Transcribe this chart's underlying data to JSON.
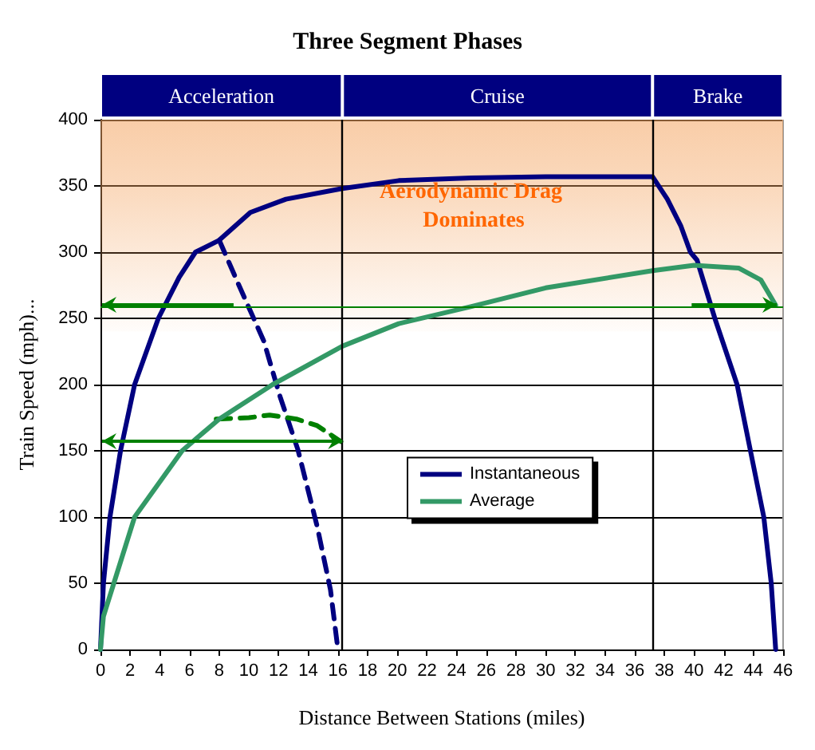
{
  "chart_data": {
    "type": "line",
    "title": "Three Segment Phases",
    "xlabel": "Distance Between Stations (miles)",
    "ylabel": "Train Speed (mph)...",
    "xlim": [
      0,
      46
    ],
    "xticks": [
      0,
      2,
      4,
      6,
      8,
      10,
      12,
      14,
      16,
      18,
      20,
      22,
      24,
      26,
      28,
      30,
      32,
      34,
      36,
      38,
      40,
      42,
      44,
      46
    ],
    "ylim": [
      0,
      400
    ],
    "yticks": [
      0,
      50,
      100,
      150,
      200,
      250,
      300,
      350,
      400
    ],
    "grid": "y",
    "legend": "center",
    "line_style": "solid",
    "series": [
      {
        "name": "Instantaneous",
        "color": "#000080",
        "x": [
          0,
          0.2,
          0.64,
          1.35,
          2.3,
          3.9,
          5.3,
          6.4,
          8,
          10.1,
          12.5,
          16.3,
          20.1,
          25,
          30,
          37.2,
          38.2,
          39.1,
          39.75,
          40.2,
          41.4,
          42.9,
          43.8,
          44.7,
          45.2,
          45.5
        ],
        "values": [
          0,
          50,
          100,
          150,
          200,
          250,
          281,
          300,
          309,
          330,
          340,
          348,
          354,
          356,
          357,
          357,
          340,
          320,
          300,
          294,
          250,
          200,
          150,
          100,
          50,
          0
        ]
      },
      {
        "name": "Average",
        "color": "#339966",
        "x": [
          0,
          0.2,
          0.9,
          2.3,
          5.5,
          8,
          11.6,
          16.3,
          20.1,
          25,
          30,
          37.2,
          40,
          43,
          44.5,
          45.5
        ],
        "values": [
          0,
          25,
          50,
          100,
          150,
          174,
          200,
          229,
          246,
          259,
          273,
          286,
          290,
          288,
          279,
          260
        ]
      },
      {
        "color": "#000080",
        "line_style": "dashed",
        "x": [
          8,
          9.25,
          11,
          12.1,
          13.3,
          14.6,
          15.5,
          16
        ],
        "values": [
          309,
          277,
          233,
          191,
          151,
          93,
          45,
          0
        ]
      },
      {
        "color": "#008000",
        "line_style": "dashed",
        "x": [
          7.8,
          10,
          11.4,
          13.2,
          14.6,
          16.2
        ],
        "values": [
          174,
          175,
          177,
          174,
          169,
          157
        ]
      }
    ],
    "ref_lines": [
      {
        "axis": "x",
        "value": 16.3,
        "color": "#000000"
      },
      {
        "axis": "x",
        "value": 37.2,
        "color": "#000000"
      },
      {
        "axis": "y",
        "value": 259,
        "color": "#008000"
      }
    ],
    "bands": [
      {
        "axis": "y",
        "from": 240,
        "to": 400,
        "label": "Aerodynamic Drag Dominates",
        "color": "#f4a460"
      }
    ],
    "annotations": [
      "Acceleration",
      "Cruise",
      "Brake"
    ]
  }
}
